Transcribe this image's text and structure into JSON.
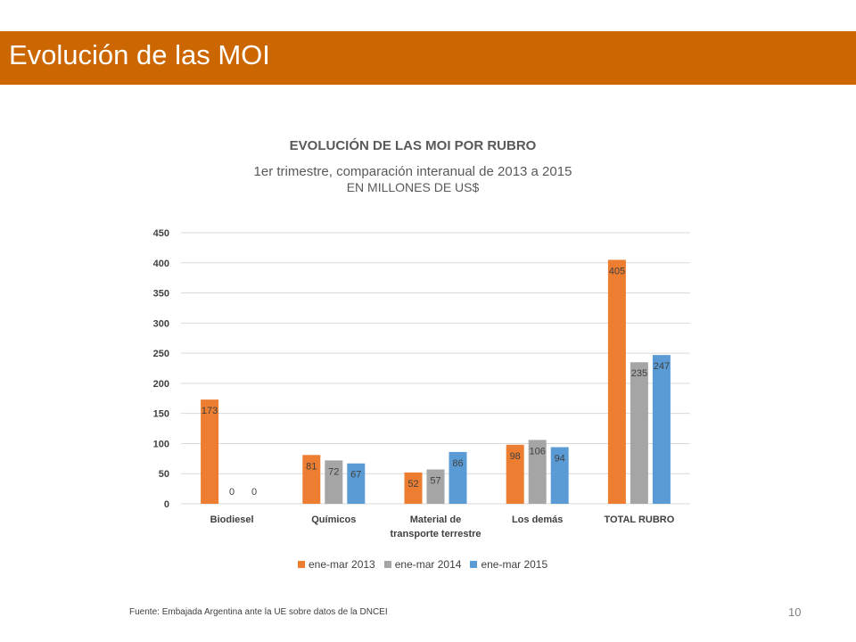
{
  "slide": {
    "title": "Evolución de las MOI",
    "source": "Fuente: Embajada  Argentina ante la UE sobre datos de la DNCEI",
    "page_number": "10"
  },
  "chart_data": {
    "type": "bar",
    "title": "EVOLUCIÓN DE LAS MOI POR RUBRO",
    "subtitle": [
      "1er trimestre, comparación interanual de 2013 a 2015",
      "EN MILLONES DE US$"
    ],
    "categories": [
      "Biodiesel",
      "Químicos",
      "Material de transporte terrestre",
      "Los demás",
      "TOTAL RUBRO"
    ],
    "category_lines": [
      [
        "Biodiesel"
      ],
      [
        "Químicos"
      ],
      [
        "Material de",
        "transporte terrestre"
      ],
      [
        "Los demás"
      ],
      [
        "TOTAL RUBRO"
      ]
    ],
    "series": [
      {
        "name": "ene-mar 2013",
        "color": "#ED7D31",
        "values": [
          173,
          81,
          52,
          98,
          405
        ]
      },
      {
        "name": "ene-mar 2014",
        "color": "#A5A5A5",
        "values": [
          0,
          72,
          57,
          106,
          235
        ]
      },
      {
        "name": "ene-mar 2015",
        "color": "#5B9BD5",
        "values": [
          0,
          67,
          86,
          94,
          247
        ]
      }
    ],
    "ylim": [
      0,
      450
    ],
    "yticks": [
      0,
      50,
      100,
      150,
      200,
      250,
      300,
      350,
      400,
      450
    ],
    "grid": true,
    "legend": "bottom"
  }
}
